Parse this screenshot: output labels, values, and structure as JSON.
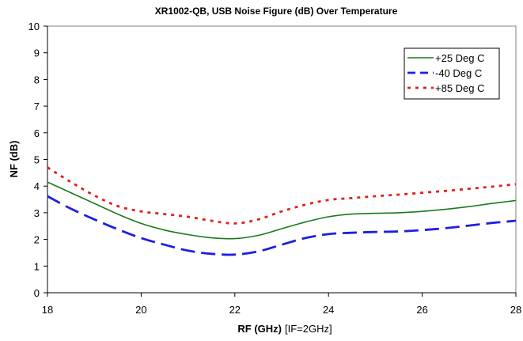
{
  "chart_data": {
    "type": "line",
    "title": "XR1002-QB,  USB Noise Figure (dB) Over Temperature",
    "xlabel": "RF (GHz)",
    "xlabel_note": "[IF=2GHz]",
    "ylabel": "NF (dB)",
    "xlim": [
      18,
      28
    ],
    "ylim": [
      0,
      10
    ],
    "xticks": [
      "18",
      "20",
      "22",
      "24",
      "26",
      "28"
    ],
    "yticks": [
      "0",
      "1",
      "2",
      "3",
      "4",
      "5",
      "6",
      "7",
      "8",
      "9",
      "10"
    ],
    "grid": false,
    "legend_position": "top-right",
    "series": [
      {
        "name": "+25 Deg C",
        "color": "#1a7a1a",
        "style": "solid",
        "x": [
          18,
          18.5,
          19,
          19.5,
          20,
          20.5,
          21,
          21.5,
          22,
          22.5,
          23,
          23.5,
          24,
          24.5,
          25,
          25.5,
          26,
          26.5,
          27,
          27.5,
          28
        ],
        "y": [
          4.15,
          3.75,
          3.35,
          2.95,
          2.6,
          2.35,
          2.18,
          2.06,
          2.03,
          2.15,
          2.4,
          2.65,
          2.85,
          2.95,
          2.98,
          3.0,
          3.05,
          3.13,
          3.23,
          3.35,
          3.46
        ]
      },
      {
        "name": "-40 Deg C",
        "color": "#1f1fe0",
        "style": "dashed",
        "x": [
          18,
          18.5,
          19,
          19.5,
          20,
          20.5,
          21,
          21.5,
          22,
          22.5,
          23,
          23.5,
          24,
          24.5,
          25,
          25.5,
          26,
          26.5,
          27,
          27.5,
          28
        ],
        "y": [
          3.62,
          3.15,
          2.75,
          2.38,
          2.05,
          1.8,
          1.58,
          1.46,
          1.43,
          1.55,
          1.8,
          2.05,
          2.2,
          2.25,
          2.28,
          2.3,
          2.35,
          2.42,
          2.52,
          2.62,
          2.7
        ]
      },
      {
        "name": "+85 Deg C",
        "color": "#e02020",
        "style": "dotted",
        "x": [
          18,
          18.5,
          19,
          19.5,
          20,
          20.5,
          21,
          21.5,
          22,
          22.5,
          23,
          23.5,
          24,
          24.5,
          25,
          25.5,
          26,
          26.5,
          27,
          27.5,
          28
        ],
        "y": [
          4.7,
          4.15,
          3.65,
          3.25,
          3.05,
          2.95,
          2.85,
          2.7,
          2.6,
          2.75,
          3.05,
          3.3,
          3.48,
          3.55,
          3.62,
          3.68,
          3.75,
          3.82,
          3.9,
          3.98,
          4.07
        ]
      }
    ]
  }
}
